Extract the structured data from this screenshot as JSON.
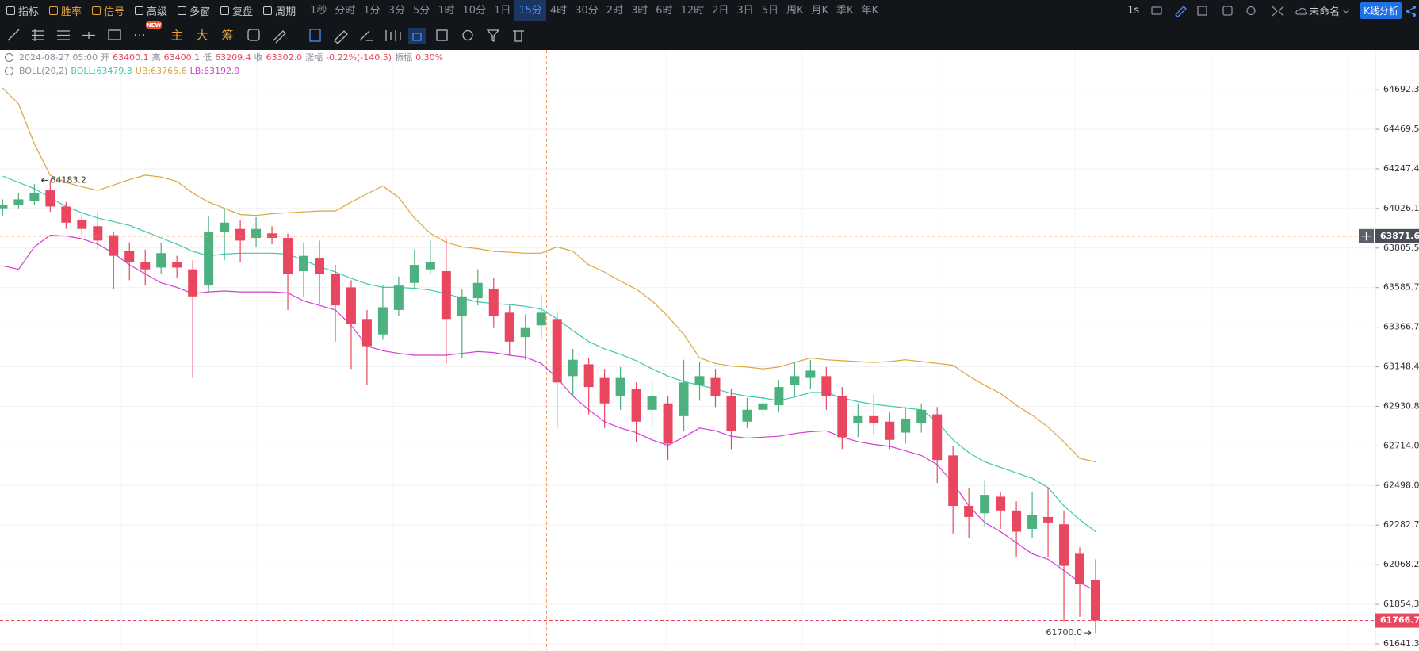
{
  "toolbar": {
    "tools": [
      "指标",
      "胜率",
      "信号",
      "高级",
      "多窗",
      "复盘",
      "周期"
    ],
    "periods": [
      "1秒",
      "分时",
      "1分",
      "3分",
      "5分",
      "1时",
      "10分",
      "1日",
      "15分",
      "4时",
      "30分",
      "2时",
      "3时",
      "6时",
      "12时",
      "2日",
      "3日",
      "5日",
      "周K",
      "月K",
      "季K",
      "年K"
    ],
    "selected_period": "15分",
    "interval": "1s",
    "layout_name": "未命名",
    "analysis": "K线分析"
  },
  "drawing_bar": {
    "modes": [
      "主",
      "大",
      "筹"
    ],
    "badge": "NEW"
  },
  "crosshair_info": {
    "date": "2024-08-27 05:00",
    "open_label": "开",
    "open": "63400.1",
    "high_label": "高",
    "high": "63400.1",
    "low_label": "低",
    "low": "63209.4",
    "close_label": "收",
    "close": "63302.0",
    "change_label": "涨幅",
    "change": "-0.22%(-140.5)",
    "amplitude_label": "振幅",
    "amplitude": "0.30%"
  },
  "indicator": {
    "name": "BOLL(20,2)"
  },
  "chart_data": {
    "type": "candlestick",
    "log_scale": true,
    "grid": true,
    "up_color": "#4db17f",
    "down_color": "#e8475f",
    "ylim": [
      61607,
      64917
    ],
    "yticks": [
      64692.3,
      64469.5,
      64247.4,
      64026.1,
      63805.5,
      63585.7,
      63366.7,
      63148.4,
      62930.8,
      {
        "value": 62714,
        "label": "62714.0"
      },
      {
        "value": 62498,
        "label": "62498.0"
      },
      62282.7,
      62068.2,
      61854.3,
      61641.3
    ],
    "crosshair_price": 63871.6,
    "low_annotation": "61700.0",
    "categories": [
      null,
      null,
      null,
      null,
      null,
      null,
      null,
      null,
      null,
      null,
      null,
      null,
      null,
      null,
      null,
      null,
      null,
      null,
      null,
      null,
      null,
      null,
      null,
      null,
      null,
      null,
      null,
      null,
      null,
      null,
      null,
      null,
      null,
      null,
      null,
      null,
      null,
      null,
      null,
      null,
      null,
      null,
      null,
      null,
      null,
      null,
      null,
      null,
      null,
      null,
      null,
      null,
      null,
      null,
      null,
      null,
      null,
      null,
      null,
      null,
      null,
      null,
      null,
      null,
      null,
      null,
      null,
      null,
      null,
      null
    ],
    "open": [
      64027,
      64047,
      64067,
      64127,
      64037,
      63962,
      63927,
      63877,
      63787,
      63727,
      63697,
      63727,
      63687,
      63597,
      63897,
      63912,
      63862,
      63887,
      63862,
      63677,
      63747,
      63662,
      63587,
      63412,
      63327,
      63462,
      63612,
      63687,
      63677,
      63427,
      63527,
      63577,
      63447,
      63312,
      63377,
      63412,
      63097,
      63162,
      63087,
      62987,
      63027,
      62912,
      62947,
      62877,
      63047,
      63087,
      62987,
      62847,
      62912,
      62937,
      63047,
      63087,
      63097,
      62987,
      62837,
      62877,
      62847,
      62787,
      62837,
      62887,
      62662,
      62387,
      62347,
      62437,
      62362,
      62262,
      62327,
      62287,
      62127,
      61987
    ],
    "high": [
      64077,
      64112,
      64162,
      64183.2,
      64062,
      63997,
      64007,
      63897,
      63837,
      63797,
      63837,
      63762,
      63737,
      63987,
      64027,
      63962,
      63977,
      63927,
      63887,
      63837,
      63847,
      63712,
      63627,
      63462,
      63597,
      63647,
      63797,
      63847,
      63862,
      63577,
      63687,
      63637,
      63487,
      63437,
      63547,
      63447,
      63247,
      63197,
      63137,
      63147,
      63062,
      63062,
      62987,
      63187,
      63177,
      63137,
      63027,
      62977,
      62987,
      63077,
      63177,
      63187,
      63147,
      63037,
      62947,
      62997,
      62897,
      62927,
      62947,
      62927,
      62712,
      62487,
      62527,
      62462,
      62412,
      62462,
      62487,
      62362,
      62162,
      62097
    ],
    "low": [
      63987,
      64027,
      64047,
      64007,
      63912,
      63877,
      63797,
      63577,
      63627,
      63597,
      63662,
      63637,
      63087,
      63562,
      63737,
      63727,
      63812,
      63827,
      63462,
      63537,
      63497,
      63287,
      63137,
      63047,
      63297,
      63427,
      63577,
      63662,
      63162,
      63197,
      63487,
      63362,
      63212,
      63187,
      63297,
      62812,
      62987,
      62887,
      62812,
      62912,
      62737,
      62812,
      62637,
      62797,
      62962,
      62927,
      62697,
      62812,
      62877,
      62897,
      62987,
      63027,
      62912,
      62697,
      62762,
      62777,
      62697,
      62727,
      62787,
      62512,
      62237,
      62212,
      62277,
      62262,
      62112,
      62212,
      62112,
      61762,
      61787,
      61700
    ],
    "close": [
      64047,
      64077,
      64112,
      64037,
      63947,
      63912,
      63847,
      63762,
      63727,
      63687,
      63777,
      63697,
      63537,
      63897,
      63947,
      63847,
      63912,
      63862,
      63662,
      63762,
      63662,
      63487,
      63387,
      63262,
      63477,
      63597,
      63712,
      63727,
      63412,
      63537,
      63612,
      63427,
      63287,
      63362,
      63447,
      63062,
      63187,
      63037,
      62947,
      63087,
      62847,
      62987,
      62727,
      63062,
      63097,
      62987,
      62797,
      62912,
      62947,
      63037,
      63097,
      63127,
      62987,
      62762,
      62877,
      62837,
      62747,
      62862,
      62912,
      62637,
      62387,
      62327,
      62447,
      62362,
      62247,
      62337,
      62297,
      62062,
      61962,
      61766.7
    ],
    "series": [
      {
        "name": "BOLL:63479.3",
        "color": "#3cc7b0",
        "values": [
          64207,
          64172,
          64137,
          64087,
          64037,
          64002,
          63972,
          63952,
          63932,
          63897,
          63862,
          63827,
          63787,
          63762,
          63772,
          63777,
          63777,
          63777,
          63772,
          63737,
          63702,
          63672,
          63637,
          63607,
          63587,
          63587,
          63582,
          63572,
          63552,
          63527,
          63507,
          63497,
          63492,
          63482,
          63467,
          63412,
          63347,
          63287,
          63247,
          63217,
          63182,
          63137,
          63097,
          63067,
          63047,
          63027,
          63002,
          62987,
          62977,
          62962,
          62982,
          63007,
          63007,
          62977,
          62957,
          62942,
          62932,
          62922,
          62912,
          62847,
          62747,
          62677,
          62627,
          62597,
          62567,
          62537,
          62487,
          62387,
          62312,
          62247
        ]
      },
      {
        "name": "UB:63765.6",
        "color": "#dca53c",
        "values": [
          64702,
          64612,
          64387,
          64212,
          64172,
          64147,
          64127,
          64157,
          64187,
          64212,
          64202,
          64177,
          64112,
          64062,
          64027,
          63992,
          63987,
          63997,
          64002,
          64007,
          64012,
          64012,
          64062,
          64107,
          64152,
          64087,
          63972,
          63887,
          63837,
          63812,
          63802,
          63787,
          63782,
          63777,
          63777,
          63812,
          63787,
          63712,
          63672,
          63622,
          63577,
          63512,
          63427,
          63327,
          63197,
          63167,
          63152,
          63147,
          63137,
          63147,
          63172,
          63197,
          63187,
          63182,
          63177,
          63172,
          63177,
          63187,
          63177,
          63167,
          63157,
          63097,
          63047,
          63002,
          62937,
          62882,
          62817,
          62737,
          62647,
          62627
        ]
      },
      {
        "name": "LB:63192.9",
        "color": "#d23ed6",
        "values": [
          63707,
          63687,
          63812,
          63877,
          63872,
          63857,
          63827,
          63777,
          63712,
          63662,
          63612,
          63587,
          63552,
          63562,
          63567,
          63562,
          63562,
          63562,
          63557,
          63512,
          63487,
          63462,
          63377,
          63262,
          63237,
          63222,
          63212,
          63212,
          63212,
          63222,
          63232,
          63227,
          63212,
          63202,
          63167,
          63087,
          62987,
          62912,
          62847,
          62812,
          62787,
          62747,
          62717,
          62762,
          62812,
          62797,
          62767,
          62757,
          62762,
          62767,
          62782,
          62792,
          62797,
          62762,
          62737,
          62722,
          62712,
          62687,
          62662,
          62612,
          62512,
          62387,
          62297,
          62247,
          62187,
          62127,
          62097,
          62037,
          61972,
          61927
        ]
      }
    ]
  }
}
